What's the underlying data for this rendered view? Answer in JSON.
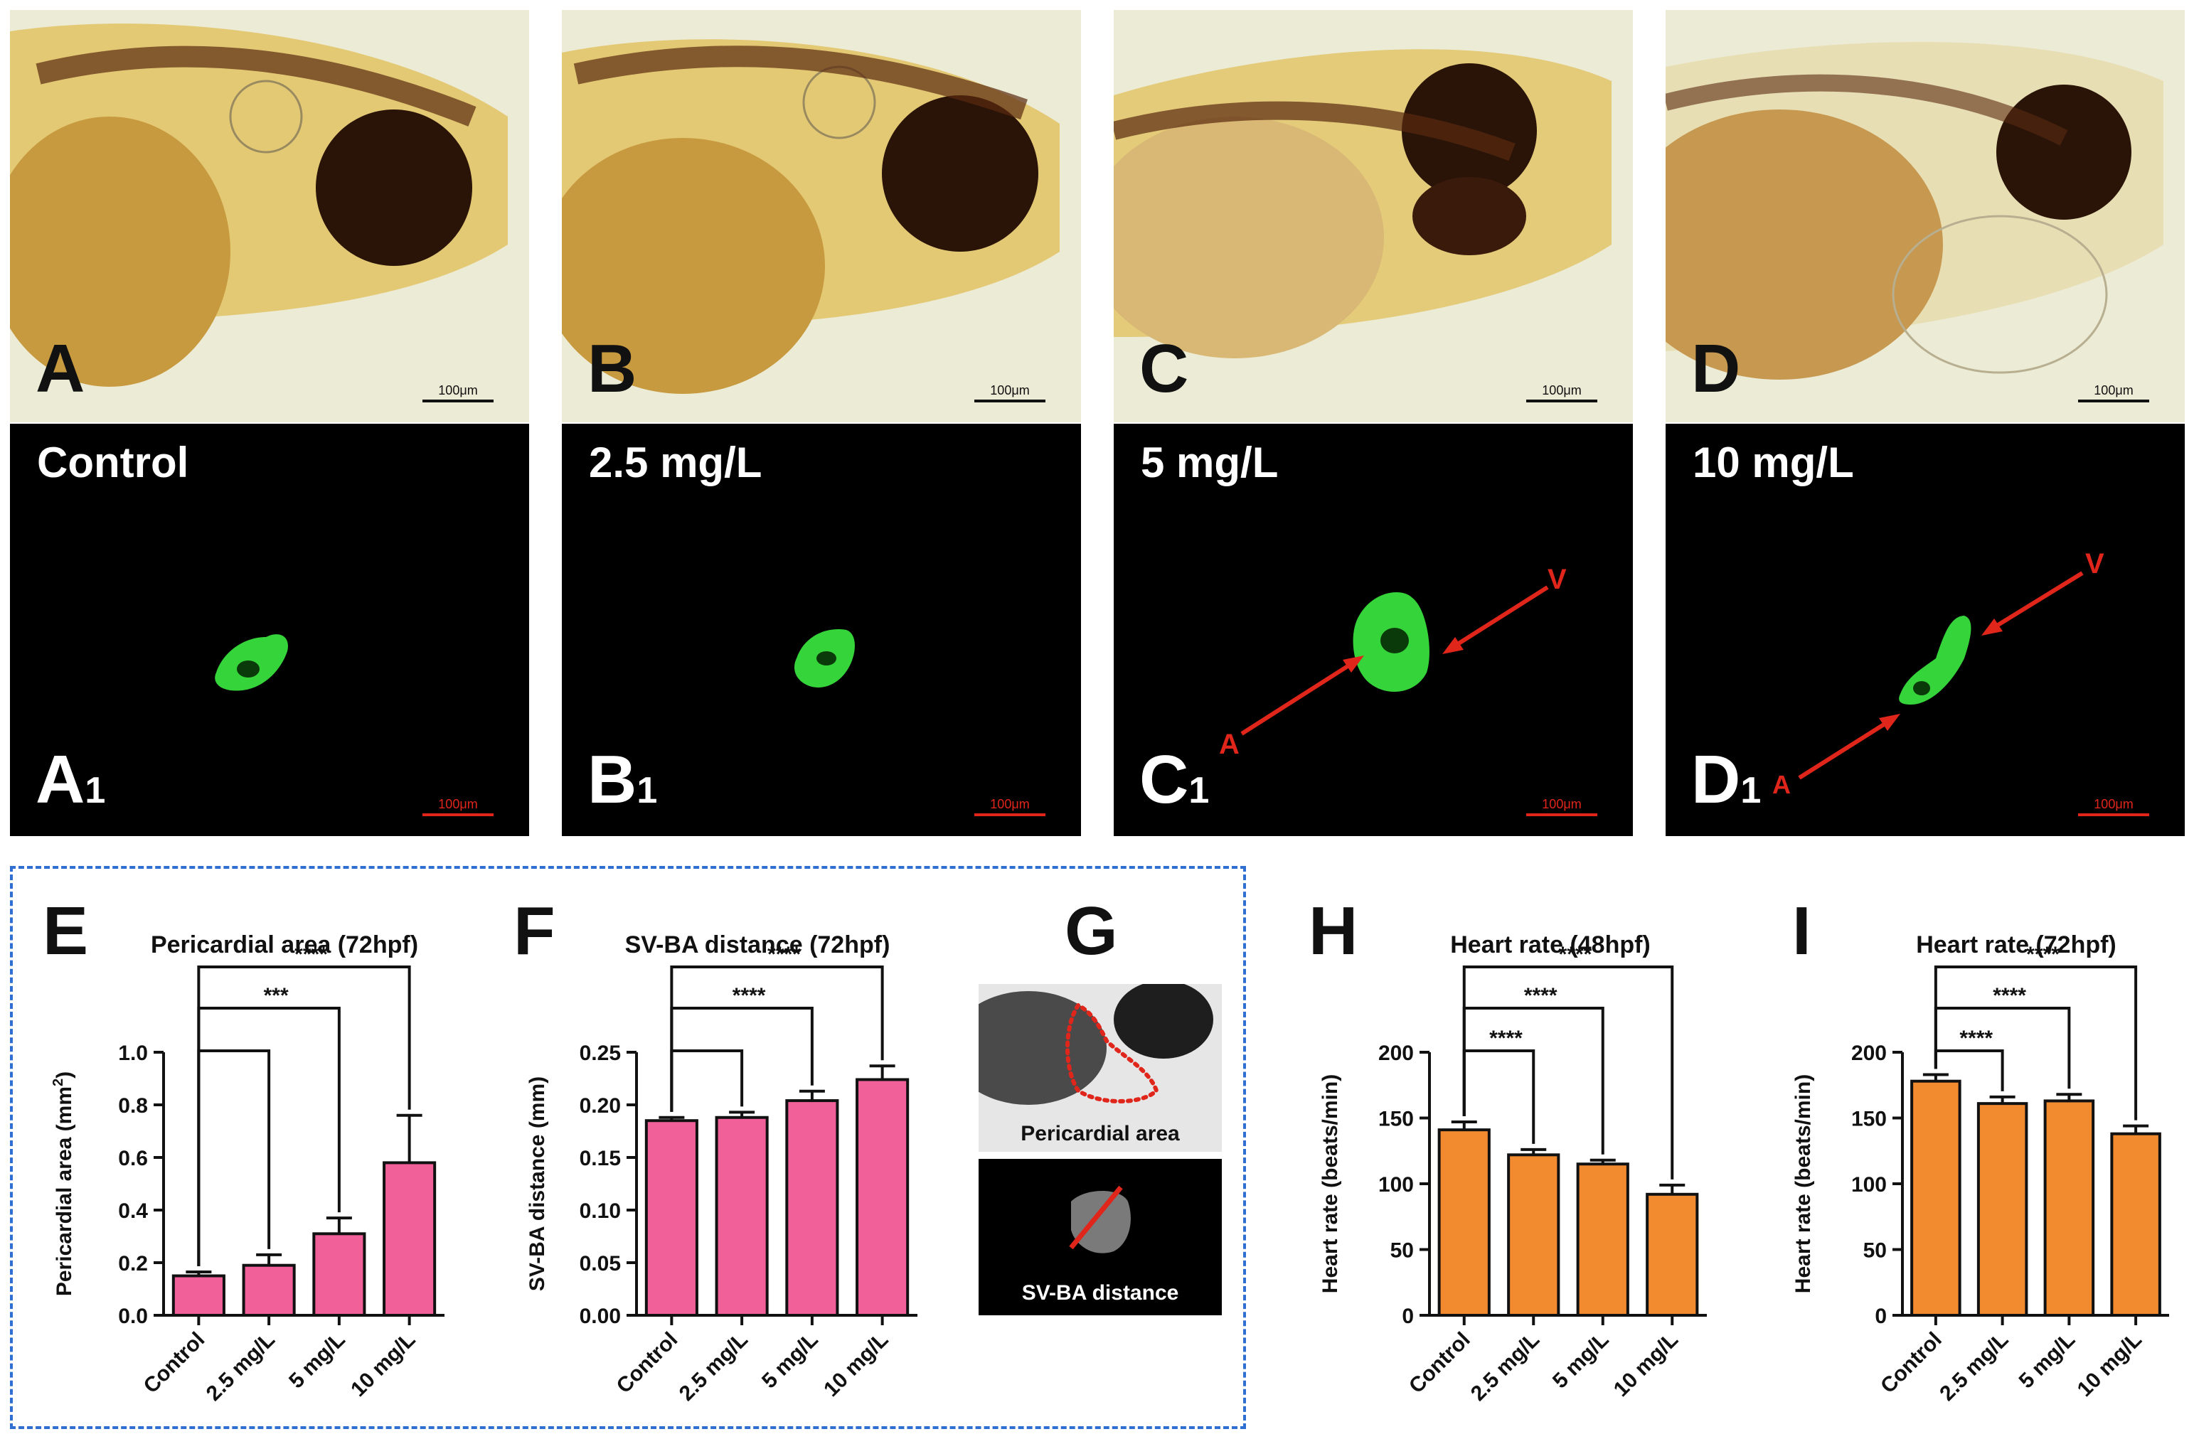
{
  "panels": [
    {
      "top_letter": "A",
      "bottom_letter": "A",
      "subscript": "1",
      "concentration": "Control",
      "scale": "100μm",
      "arrows": false
    },
    {
      "top_letter": "B",
      "bottom_letter": "B",
      "subscript": "1",
      "concentration": "2.5 mg/L",
      "scale": "100μm",
      "arrows": false
    },
    {
      "top_letter": "C",
      "bottom_letter": "C",
      "subscript": "1",
      "concentration": "5 mg/L",
      "scale": "100μm",
      "arrows": true,
      "arrow_a": "A",
      "arrow_v": "V"
    },
    {
      "top_letter": "D",
      "bottom_letter": "D",
      "subscript": "1",
      "concentration": "10 mg/L",
      "scale": "100μm",
      "arrows": true,
      "arrow_a": "A",
      "arrow_v": "V"
    }
  ],
  "colors": {
    "pink": "#f2609a",
    "orange": "#f28a30",
    "dash": "#2f6fd1",
    "red": "#e0251b",
    "green": "#35d43a"
  },
  "schematic": {
    "letter": "G",
    "top_label": "Pericardial area",
    "bottom_label": "SV-BA distance"
  },
  "chart_data": [
    {
      "letter": "E",
      "type": "bar",
      "title": "Pericardial area (72hpf)",
      "ylabel": "Pericardial area (mm",
      "ylabel_sup": "2",
      "ylabel_end": ")",
      "categories": [
        "Control",
        "2.5 mg/L",
        "5 mg/L",
        "10 mg/L"
      ],
      "values": [
        0.15,
        0.19,
        0.31,
        0.58
      ],
      "errors": [
        0.015,
        0.04,
        0.06,
        0.18
      ],
      "ylim": [
        0,
        1.0
      ],
      "yticks": [
        0.0,
        0.2,
        0.4,
        0.6,
        0.8,
        1.0
      ],
      "decimals": 1,
      "color": "pink",
      "significance": [
        {
          "to": 1,
          "label": ""
        },
        {
          "to": 2,
          "label": "***"
        },
        {
          "to": 3,
          "label": "****"
        }
      ]
    },
    {
      "letter": "F",
      "type": "bar",
      "title": "SV-BA distance (72hpf)",
      "ylabel": "SV-BA distance (mm)",
      "ylabel_sup": "",
      "ylabel_end": "",
      "categories": [
        "Control",
        "2.5 mg/L",
        "5 mg/L",
        "10 mg/L"
      ],
      "values": [
        0.185,
        0.188,
        0.204,
        0.224
      ],
      "errors": [
        0.003,
        0.005,
        0.009,
        0.013
      ],
      "ylim": [
        0,
        0.25
      ],
      "yticks": [
        0.0,
        0.05,
        0.1,
        0.15,
        0.2,
        0.25
      ],
      "decimals": 2,
      "color": "pink",
      "significance": [
        {
          "to": 1,
          "label": ""
        },
        {
          "to": 2,
          "label": "****"
        },
        {
          "to": 3,
          "label": "****"
        }
      ]
    },
    {
      "letter": "H",
      "type": "bar",
      "title": "Heart rate (48hpf)",
      "ylabel": "Heart rate (beats/min)",
      "ylabel_sup": "",
      "ylabel_end": "",
      "categories": [
        "Control",
        "2.5 mg/L",
        "5 mg/L",
        "10 mg/L"
      ],
      "values": [
        141,
        122,
        115,
        92
      ],
      "errors": [
        6,
        4,
        3,
        7
      ],
      "ylim": [
        0,
        200
      ],
      "yticks": [
        0,
        50,
        100,
        150,
        200
      ],
      "decimals": 0,
      "color": "orange",
      "significance": [
        {
          "to": 1,
          "label": "****"
        },
        {
          "to": 2,
          "label": "****"
        },
        {
          "to": 3,
          "label": "****"
        }
      ]
    },
    {
      "letter": "I",
      "type": "bar",
      "title": "Heart rate (72hpf)",
      "ylabel": "Heart rate (beats/min)",
      "ylabel_sup": "",
      "ylabel_end": "",
      "categories": [
        "Control",
        "2.5 mg/L",
        "5 mg/L",
        "10 mg/L"
      ],
      "values": [
        178,
        161,
        163,
        138
      ],
      "errors": [
        5,
        5,
        5,
        6
      ],
      "ylim": [
        0,
        200
      ],
      "yticks": [
        0,
        50,
        100,
        150,
        200
      ],
      "decimals": 0,
      "color": "orange",
      "significance": [
        {
          "to": 1,
          "label": "****"
        },
        {
          "to": 2,
          "label": "****"
        },
        {
          "to": 3,
          "label": "****"
        }
      ]
    }
  ]
}
